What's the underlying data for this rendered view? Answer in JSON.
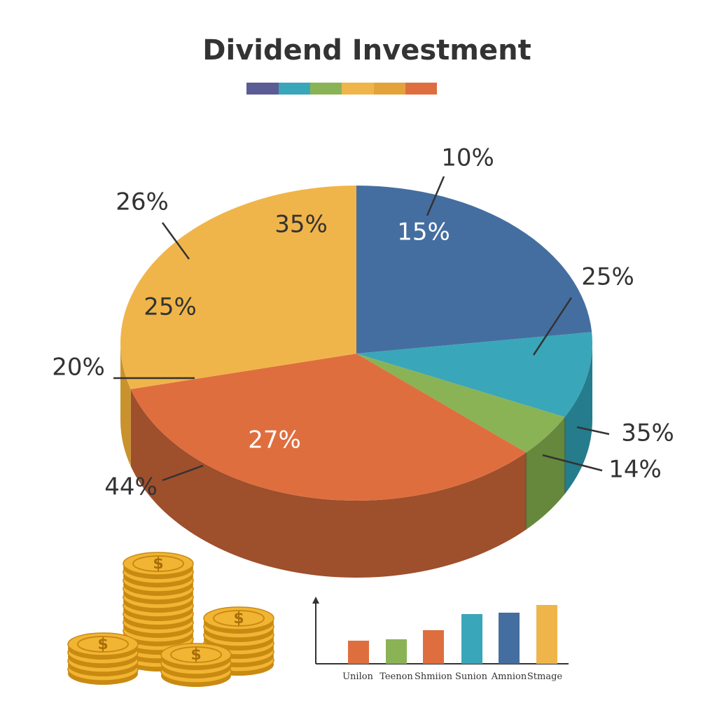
{
  "header": {
    "title": "Dividend Investment"
  },
  "pie_labels": [
    "10%",
    "15%",
    "25%",
    "35%",
    "14%",
    "27%",
    "44%",
    "20%",
    "25%",
    "26%",
    "35%"
  ],
  "bar_chart": {
    "categories": [
      "Unilon",
      "Teenon",
      "Shmiion",
      "Sunion",
      "Amnion",
      "Stmage"
    ]
  }
}
